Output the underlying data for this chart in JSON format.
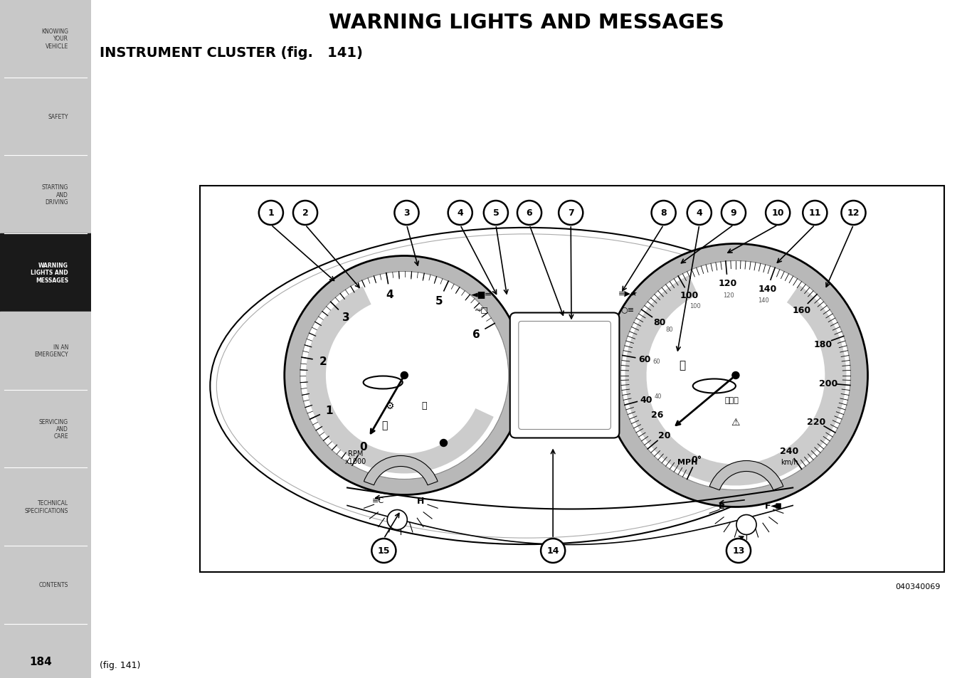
{
  "page_bg": "#ffffff",
  "sidebar_bg": "#c8c8c8",
  "sidebar_active_bg": "#1a1a1a",
  "sidebar_active_text": "#ffffff",
  "sidebar_text_color": "#333333",
  "sidebar_items": [
    {
      "label": "KNOWING\nYOUR\nVEHICLE",
      "active": false
    },
    {
      "label": "SAFETY",
      "active": false
    },
    {
      "label": "STARTING\nAND\nDRIVING",
      "active": false
    },
    {
      "label": "WARNING\nLIGHTS AND\nMESSAGES",
      "active": true
    },
    {
      "label": "IN AN\nEMERGENCY",
      "active": false
    },
    {
      "label": "SERVICING\nAND\nCARE",
      "active": false
    },
    {
      "label": "TECHNICAL\nSPECIFICATIONS",
      "active": false
    },
    {
      "label": "CONTENTS",
      "active": false
    }
  ],
  "main_title": "WARNING LIGHTS AND MESSAGES",
  "sub_title": "INSTRUMENT CLUSTER (fig.   141)",
  "page_number": "184",
  "fig_label": "(fig. 141)",
  "doc_code": "040340069"
}
